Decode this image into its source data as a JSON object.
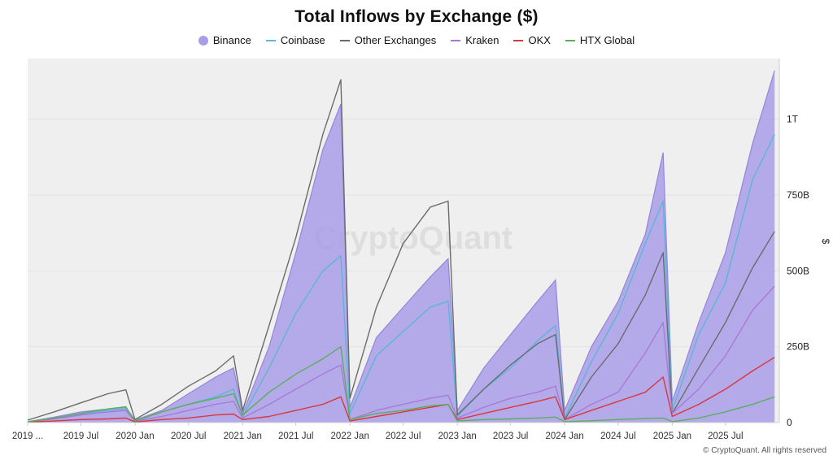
{
  "title": "Total Inflows by Exchange ($)",
  "watermark": "CryptoQuant",
  "credit": "© CryptoQuant. All rights reserved",
  "colors": {
    "binance_fill": "#a99de8",
    "binance_line": "#9186dd",
    "coinbase": "#5ab6d8",
    "other": "#6b6b6b",
    "kraken": "#a87ad8",
    "okx": "#d9363e",
    "htx": "#5aae5a",
    "plot_bg": "#efefef"
  },
  "legend": [
    {
      "name": "Binance",
      "color": "#a99de8",
      "shape": "circle"
    },
    {
      "name": "Coinbase",
      "color": "#5ab6d8",
      "shape": "line"
    },
    {
      "name": "Other Exchanges",
      "color": "#6b6b6b",
      "shape": "line"
    },
    {
      "name": "Kraken",
      "color": "#a87ad8",
      "shape": "line"
    },
    {
      "name": "OKX",
      "color": "#d9363e",
      "shape": "line"
    },
    {
      "name": "HTX Global",
      "color": "#5aae5a",
      "shape": "line"
    }
  ],
  "chart_data": {
    "type": "area",
    "title": "Total Inflows by Exchange ($)",
    "ylabel": "$",
    "ylim": [
      0,
      1200
    ],
    "y_unit": "billions USD",
    "y_ticks": [
      {
        "value": 0,
        "label": "0"
      },
      {
        "value": 250,
        "label": "250B"
      },
      {
        "value": 500,
        "label": "500B"
      },
      {
        "value": 750,
        "label": "750B"
      },
      {
        "value": 1000,
        "label": "1T"
      }
    ],
    "x_ticks": [
      {
        "date": "2019-01-01",
        "label": "2019 ..."
      },
      {
        "date": "2019-07-01",
        "label": "2019 Jul"
      },
      {
        "date": "2020-01-01",
        "label": "2020 Jan"
      },
      {
        "date": "2020-07-01",
        "label": "2020 Jul"
      },
      {
        "date": "2021-01-01",
        "label": "2021 Jan"
      },
      {
        "date": "2021-07-01",
        "label": "2021 Jul"
      },
      {
        "date": "2022-01-01",
        "label": "2022 Jan"
      },
      {
        "date": "2022-07-01",
        "label": "2022 Jul"
      },
      {
        "date": "2023-01-01",
        "label": "2023 Jan"
      },
      {
        "date": "2023-07-01",
        "label": "2023 Jul"
      },
      {
        "date": "2024-01-01",
        "label": "2024 Jan"
      },
      {
        "date": "2024-07-01",
        "label": "2024 Jul"
      },
      {
        "date": "2025-01-01",
        "label": "2025 Jan"
      },
      {
        "date": "2025-07-01",
        "label": "2025 Jul"
      }
    ],
    "x": [
      "2019-01-01",
      "2019-04-01",
      "2019-07-01",
      "2019-10-01",
      "2019-12-01",
      "2020-01-01",
      "2020-04-01",
      "2020-07-01",
      "2020-10-01",
      "2020-12-01",
      "2021-01-01",
      "2021-04-01",
      "2021-07-01",
      "2021-10-01",
      "2021-12-01",
      "2022-01-01",
      "2022-04-01",
      "2022-07-01",
      "2022-10-01",
      "2022-12-01",
      "2023-01-01",
      "2023-04-01",
      "2023-07-01",
      "2023-10-01",
      "2023-12-01",
      "2024-01-01",
      "2024-04-01",
      "2024-07-01",
      "2024-10-01",
      "2024-12-01",
      "2025-01-01",
      "2025-04-01",
      "2025-07-01",
      "2025-10-01",
      "2025-12-15"
    ],
    "series": [
      {
        "name": "Binance",
        "style": "area",
        "values": [
          3,
          18,
          35,
          45,
          50,
          8,
          40,
          95,
          150,
          180,
          30,
          250,
          560,
          900,
          1050,
          50,
          280,
          380,
          480,
          540,
          40,
          180,
          290,
          400,
          470,
          40,
          250,
          400,
          620,
          890,
          70,
          330,
          560,
          920,
          1160
        ]
      },
      {
        "name": "Coinbase",
        "style": "line",
        "values": [
          3,
          14,
          28,
          40,
          45,
          6,
          35,
          60,
          85,
          110,
          20,
          180,
          360,
          500,
          550,
          30,
          220,
          300,
          380,
          400,
          20,
          110,
          180,
          270,
          320,
          15,
          200,
          360,
          590,
          730,
          40,
          290,
          460,
          800,
          950
        ]
      },
      {
        "name": "Other Exchanges",
        "style": "line",
        "values": [
          8,
          35,
          65,
          95,
          108,
          10,
          60,
          120,
          170,
          220,
          40,
          320,
          610,
          950,
          1130,
          80,
          380,
          590,
          710,
          730,
          25,
          110,
          190,
          260,
          290,
          10,
          150,
          260,
          420,
          560,
          30,
          180,
          330,
          510,
          630
        ]
      },
      {
        "name": "Kraken",
        "style": "line",
        "values": [
          2,
          12,
          25,
          35,
          40,
          4,
          20,
          40,
          60,
          70,
          15,
          60,
          110,
          160,
          190,
          10,
          40,
          60,
          80,
          90,
          15,
          50,
          80,
          100,
          120,
          10,
          60,
          100,
          230,
          330,
          30,
          110,
          220,
          370,
          450
        ]
      },
      {
        "name": "OKX",
        "style": "line",
        "values": [
          2,
          5,
          10,
          12,
          15,
          2,
          10,
          15,
          25,
          28,
          10,
          20,
          40,
          60,
          85,
          5,
          20,
          35,
          50,
          60,
          10,
          30,
          50,
          70,
          85,
          10,
          40,
          70,
          100,
          150,
          20,
          60,
          110,
          170,
          215
        ]
      },
      {
        "name": "HTX Global",
        "style": "line",
        "values": [
          3,
          15,
          30,
          45,
          52,
          5,
          35,
          60,
          80,
          95,
          25,
          100,
          160,
          210,
          250,
          10,
          30,
          40,
          55,
          60,
          5,
          10,
          12,
          15,
          18,
          3,
          6,
          10,
          13,
          15,
          3,
          15,
          35,
          60,
          85
        ]
      }
    ]
  }
}
